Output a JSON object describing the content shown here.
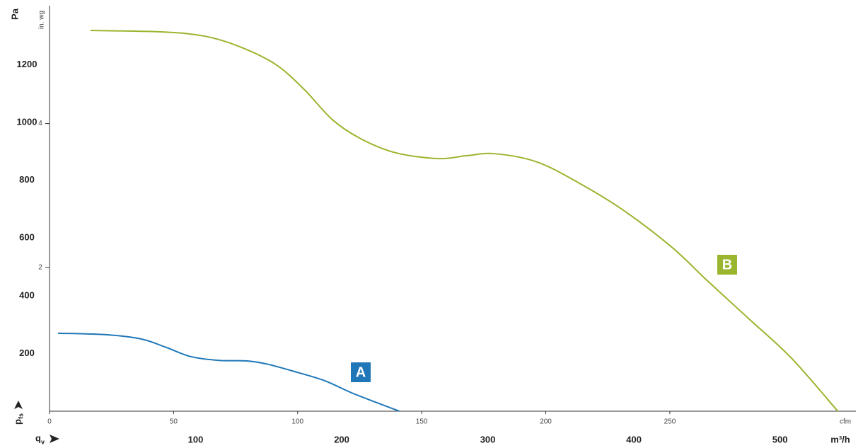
{
  "chart_data": {
    "type": "line",
    "y_label": "Pa",
    "y2_label": "in. wg",
    "y_quantity": "p",
    "y_quantity_sub": "fs",
    "x_quantity": "q",
    "x_quantity_sub": "v",
    "x_label": "cfm",
    "x2_label": "m³/h",
    "xlim": [
      0,
      325
    ],
    "xticks": [
      0,
      50,
      100,
      150,
      200,
      250
    ],
    "x2lim": [
      0,
      552
    ],
    "x2ticks": [
      100,
      200,
      300,
      400,
      500
    ],
    "ylim": [
      0,
      1400
    ],
    "yticks": [
      200,
      400,
      600,
      800,
      1000,
      1200
    ],
    "y2lim": [
      0,
      5.62
    ],
    "y2ticks": [
      2,
      4
    ],
    "series": [
      {
        "name": "A",
        "color": "#1f77b8",
        "x": [
          3.4,
          22.8,
          37,
          47,
          57,
          68.4,
          79.8,
          88.3,
          99.7,
          111.1,
          122.5,
          141
        ],
        "values": [
          270,
          265,
          250,
          221,
          189,
          176,
          174,
          162,
          135,
          105,
          61,
          0
        ]
      },
      {
        "name": "B",
        "color": "#9ab52e",
        "x": [
          16.5,
          45.6,
          62.7,
          76.9,
          91.2,
          102.6,
          114,
          125.4,
          139.6,
          156.7,
          168,
          179.5,
          196.6,
          213.7,
          230.8,
          250.7,
          265,
          282,
          299,
          317.7
        ],
        "values": [
          1319,
          1314,
          1299,
          1262,
          1201,
          1115,
          1010,
          944,
          895,
          875,
          885,
          892,
          863,
          789,
          699,
          569,
          453,
          319,
          184,
          0
        ]
      }
    ]
  }
}
